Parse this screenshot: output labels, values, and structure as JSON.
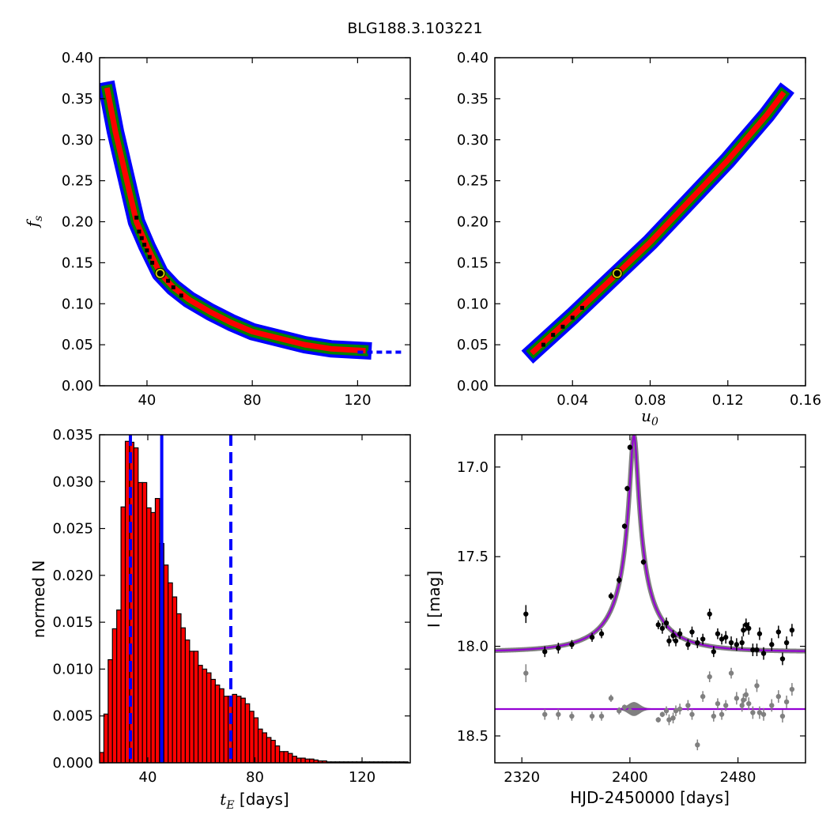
{
  "figure_title": "BLG188.3.103221",
  "chart_data": [
    {
      "id": "fs_vs_tE",
      "type": "heatmap",
      "xlabel": "",
      "ylabel": "f_s",
      "ylabel_main": "f",
      "ylabel_sub": "s",
      "xlim": [
        22,
        140
      ],
      "ylim": [
        0.0,
        0.4
      ],
      "xticks": [
        40,
        80,
        120
      ],
      "xtick_labels": [
        "40",
        "80",
        "120"
      ],
      "yticks": [
        0.0,
        0.05,
        0.1,
        0.15,
        0.2,
        0.25,
        0.3,
        0.35,
        0.4
      ],
      "ytick_labels": [
        "0.00",
        "0.05",
        "0.10",
        "0.15",
        "0.20",
        "0.25",
        "0.30",
        "0.35",
        "0.40"
      ],
      "band_points": [
        [
          25,
          0.36
        ],
        [
          28,
          0.31
        ],
        [
          32,
          0.255
        ],
        [
          36,
          0.2
        ],
        [
          40,
          0.17
        ],
        [
          45,
          0.137
        ],
        [
          50,
          0.12
        ],
        [
          56,
          0.105
        ],
        [
          64,
          0.09
        ],
        [
          72,
          0.077
        ],
        [
          80,
          0.066
        ],
        [
          90,
          0.058
        ],
        [
          100,
          0.05
        ],
        [
          110,
          0.045
        ],
        [
          122,
          0.043
        ]
      ],
      "tail_points": [
        [
          120,
          0.041
        ],
        [
          138,
          0.041
        ]
      ],
      "black_points": [
        [
          36,
          0.205
        ],
        [
          37,
          0.188
        ],
        [
          38,
          0.18
        ],
        [
          39,
          0.172
        ],
        [
          40,
          0.165
        ],
        [
          41,
          0.157
        ],
        [
          42,
          0.15
        ],
        [
          46,
          0.135
        ],
        [
          48,
          0.128
        ],
        [
          50,
          0.12
        ],
        [
          53,
          0.11
        ]
      ],
      "best_fit": {
        "x": 45,
        "y": 0.137
      },
      "colors": {
        "outer": "#0000ff",
        "middle": "#008000",
        "inner": "#ff0000",
        "points": "#000000",
        "marker_ring": "#c8c800"
      }
    },
    {
      "id": "fs_vs_u0",
      "type": "heatmap",
      "xlabel": "u_0",
      "xlabel_main": "u",
      "xlabel_sub": "0",
      "ylabel": "",
      "xlim": [
        0.0,
        0.16
      ],
      "ylim": [
        0.0,
        0.4
      ],
      "xticks": [
        0.04,
        0.08,
        0.12,
        0.16
      ],
      "xtick_labels": [
        "0.04",
        "0.08",
        "0.12",
        "0.16"
      ],
      "yticks": [
        0.0,
        0.05,
        0.1,
        0.15,
        0.2,
        0.25,
        0.3,
        0.35,
        0.4
      ],
      "ytick_labels": [
        "0.00",
        "0.05",
        "0.10",
        "0.15",
        "0.20",
        "0.25",
        "0.30",
        "0.35",
        "0.40"
      ],
      "band_points": [
        [
          0.02,
          0.042
        ],
        [
          0.04,
          0.085
        ],
        [
          0.06,
          0.13
        ],
        [
          0.08,
          0.175
        ],
        [
          0.1,
          0.225
        ],
        [
          0.12,
          0.275
        ],
        [
          0.14,
          0.33
        ],
        [
          0.148,
          0.355
        ]
      ],
      "black_points": [
        [
          0.025,
          0.05
        ],
        [
          0.03,
          0.062
        ],
        [
          0.035,
          0.072
        ],
        [
          0.04,
          0.083
        ],
        [
          0.045,
          0.095
        ]
      ],
      "best_fit": {
        "x": 0.063,
        "y": 0.137
      },
      "colors": {
        "outer": "#0000ff",
        "middle": "#008000",
        "inner": "#ff0000",
        "points": "#000000",
        "marker_ring": "#c8c800"
      }
    },
    {
      "id": "tE_histogram",
      "type": "bar",
      "xlabel": "t_E [days]",
      "xlabel_main": "t",
      "xlabel_sub": "E",
      "xlabel_unit": " [days]",
      "ylabel": "normed N",
      "xlim": [
        22,
        138
      ],
      "ylim": [
        0.0,
        0.035
      ],
      "xticks": [
        40,
        80,
        120
      ],
      "xtick_labels": [
        "40",
        "80",
        "120"
      ],
      "yticks": [
        0.0,
        0.005,
        0.01,
        0.015,
        0.02,
        0.025,
        0.03,
        0.035
      ],
      "ytick_labels": [
        "0.000",
        "0.005",
        "0.010",
        "0.015",
        "0.020",
        "0.025",
        "0.030",
        "0.035"
      ],
      "bin_start": 22,
      "bin_width": 1.6,
      "values": [
        0.0011,
        0.0052,
        0.011,
        0.0143,
        0.0163,
        0.0273,
        0.0343,
        0.0342,
        0.0336,
        0.0299,
        0.0299,
        0.0272,
        0.0267,
        0.0282,
        0.0234,
        0.0211,
        0.0192,
        0.0177,
        0.0159,
        0.0144,
        0.0131,
        0.0119,
        0.0119,
        0.0104,
        0.01,
        0.0096,
        0.0089,
        0.0083,
        0.0079,
        0.0071,
        0.0071,
        0.0073,
        0.0071,
        0.0069,
        0.0063,
        0.0055,
        0.0048,
        0.0036,
        0.0032,
        0.0027,
        0.0024,
        0.0018,
        0.0012,
        0.0012,
        0.001,
        0.0007,
        0.0005,
        0.0005,
        0.0004,
        0.0004,
        0.0003,
        0.0002,
        0.0002,
        0.0001,
        0.0001,
        0.0001,
        0.0001,
        0.0001,
        0.0001,
        0.0001,
        0.0001,
        0.0001,
        0.0001,
        0.0001,
        0.0001,
        0.0001,
        0.0001,
        0.0001,
        0.0001,
        0.0001,
        0.0001,
        0.0001
      ],
      "vlines": [
        {
          "x": 33.5,
          "style": "dashed"
        },
        {
          "x": 45.2,
          "style": "solid"
        },
        {
          "x": 71,
          "style": "dashed"
        }
      ],
      "colors": {
        "bar": "#ff0000",
        "edge": "#000000",
        "vline": "#0000ff"
      }
    },
    {
      "id": "light_curve",
      "type": "scatter",
      "xlabel": "HJD-2450000 [days]",
      "ylabel": "I [mag]",
      "xlim": [
        2300,
        2530
      ],
      "ylim": [
        18.65,
        16.82
      ],
      "y_inverted": true,
      "xticks": [
        2320,
        2400,
        2480
      ],
      "xtick_labels": [
        "2320",
        "2400",
        "2480"
      ],
      "yticks": [
        17.0,
        17.5,
        18.0,
        18.5
      ],
      "ytick_labels": [
        "17.0",
        "17.5",
        "18.0",
        "18.5"
      ],
      "model": {
        "t0": 2403,
        "tE": 45,
        "u0": 0.063,
        "fs": 0.137,
        "baseline": 18.03
      },
      "residual_offset": 18.35,
      "points": [
        [
          2323,
          17.82
        ],
        [
          2337,
          18.03
        ],
        [
          2347,
          18.01
        ],
        [
          2357,
          17.99
        ],
        [
          2372,
          17.95
        ],
        [
          2379,
          17.93
        ],
        [
          2386,
          17.72
        ],
        [
          2392,
          17.63
        ],
        [
          2396,
          17.33
        ],
        [
          2398,
          17.12
        ],
        [
          2400,
          16.89
        ],
        [
          2410,
          17.53
        ],
        [
          2421,
          17.88
        ],
        [
          2424,
          17.9
        ],
        [
          2427,
          17.87
        ],
        [
          2429,
          17.97
        ],
        [
          2432,
          17.94
        ],
        [
          2434,
          17.97
        ],
        [
          2437,
          17.93
        ],
        [
          2443,
          17.99
        ],
        [
          2446,
          17.92
        ],
        [
          2450,
          17.98
        ],
        [
          2454,
          17.96
        ],
        [
          2459,
          17.82
        ],
        [
          2462,
          18.03
        ],
        [
          2465,
          17.93
        ],
        [
          2468,
          17.96
        ],
        [
          2471,
          17.95
        ],
        [
          2475,
          17.98
        ],
        [
          2479,
          17.99
        ],
        [
          2483,
          17.98
        ],
        [
          2484,
          17.91
        ],
        [
          2486,
          17.88
        ],
        [
          2488,
          17.9
        ],
        [
          2491,
          18.02
        ],
        [
          2494,
          18.02
        ],
        [
          2496,
          17.93
        ],
        [
          2499,
          18.04
        ],
        [
          2505,
          17.99
        ],
        [
          2510,
          17.92
        ],
        [
          2513,
          18.07
        ],
        [
          2516,
          17.98
        ],
        [
          2520,
          17.91
        ]
      ],
      "error_bars": [
        0.05,
        0.03,
        0.03,
        0.025,
        0.025,
        0.025,
        0.02,
        0.02,
        0.015,
        0.015,
        0.015,
        0.015,
        0.025,
        0.03,
        0.03,
        0.03,
        0.03,
        0.03,
        0.03,
        0.03,
        0.03,
        0.03,
        0.03,
        0.03,
        0.03,
        0.03,
        0.03,
        0.035,
        0.035,
        0.035,
        0.035,
        0.035,
        0.035,
        0.035,
        0.035,
        0.035,
        0.035,
        0.035,
        0.035,
        0.035,
        0.035,
        0.035,
        0.035
      ],
      "residual_points": [
        [
          2323,
          18.15
        ],
        [
          2337,
          18.38
        ],
        [
          2347,
          18.38
        ],
        [
          2357,
          18.39
        ],
        [
          2372,
          18.39
        ],
        [
          2379,
          18.39
        ],
        [
          2386,
          18.29
        ],
        [
          2392,
          18.36
        ],
        [
          2396,
          18.34
        ],
        [
          2400,
          18.36
        ],
        [
          2421,
          18.41
        ],
        [
          2424,
          18.38
        ],
        [
          2427,
          18.36
        ],
        [
          2429,
          18.41
        ],
        [
          2432,
          18.4
        ],
        [
          2434,
          18.36
        ],
        [
          2437,
          18.35
        ],
        [
          2443,
          18.33
        ],
        [
          2446,
          18.38
        ],
        [
          2450,
          18.55
        ],
        [
          2454,
          18.28
        ],
        [
          2459,
          18.17
        ],
        [
          2462,
          18.39
        ],
        [
          2465,
          18.32
        ],
        [
          2468,
          18.38
        ],
        [
          2471,
          18.33
        ],
        [
          2475,
          18.15
        ],
        [
          2479,
          18.29
        ],
        [
          2483,
          18.33
        ],
        [
          2484,
          18.3
        ],
        [
          2486,
          18.27
        ],
        [
          2488,
          18.32
        ],
        [
          2491,
          18.37
        ],
        [
          2494,
          18.22
        ],
        [
          2496,
          18.37
        ],
        [
          2499,
          18.38
        ],
        [
          2505,
          18.33
        ],
        [
          2510,
          18.28
        ],
        [
          2513,
          18.39
        ],
        [
          2516,
          18.31
        ],
        [
          2520,
          18.24
        ]
      ],
      "colors": {
        "model": "#9400d3",
        "model_band": "#808080",
        "points": "#000000",
        "residuals": "#808080"
      }
    }
  ]
}
